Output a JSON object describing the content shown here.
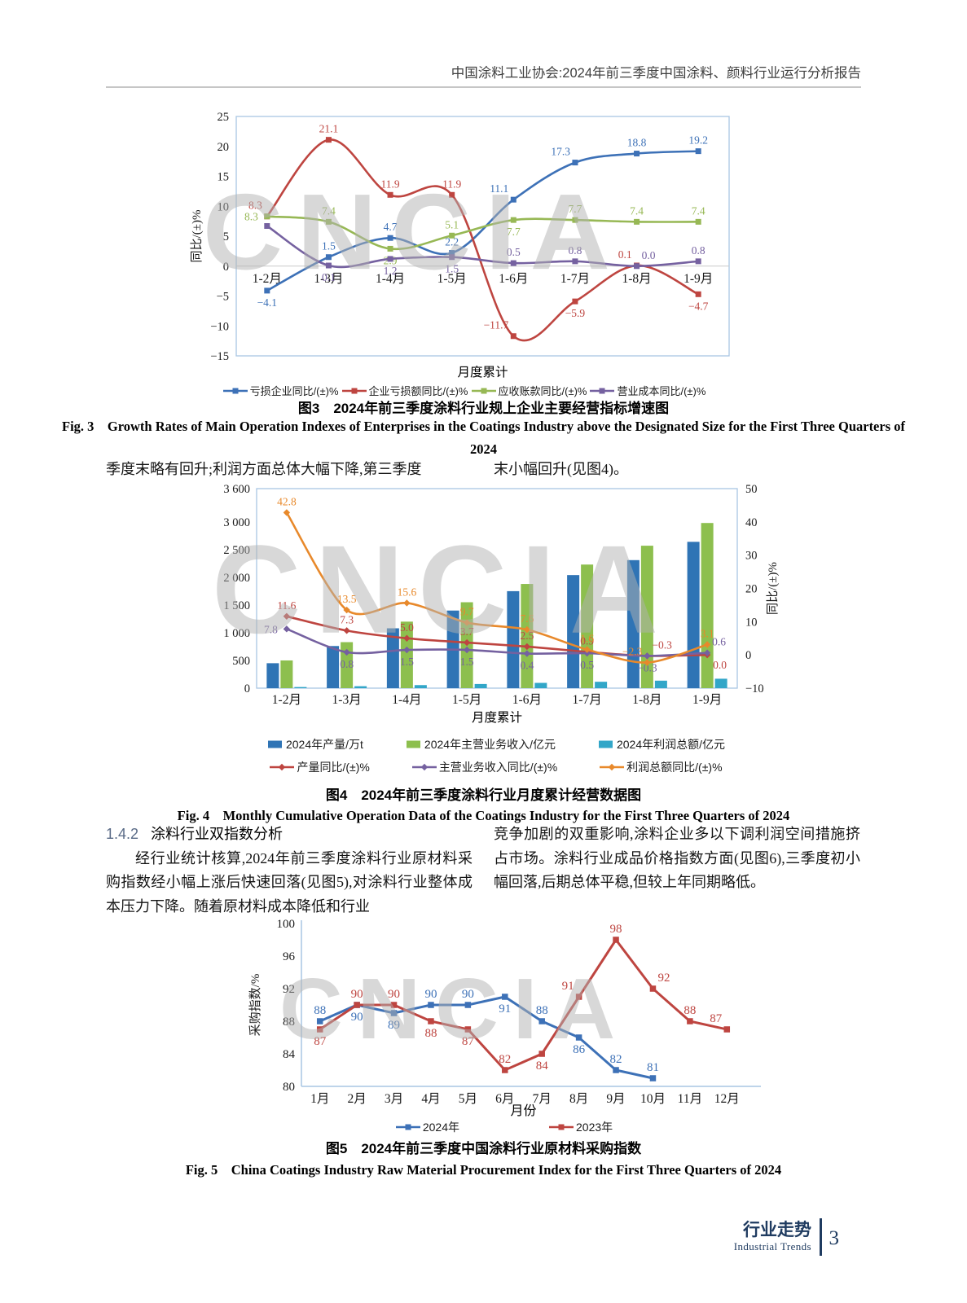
{
  "header": {
    "title": "中国涂料工业协会:2024年前三季度中国涂料、颜料行业运行分析报告"
  },
  "watermark": "CNCIA",
  "chart_style": {
    "border": "#A9C6E3",
    "grid": "#C9C9C9",
    "tick_color": "#1a1a1a"
  },
  "figures": {
    "fig3": {
      "caption_cn": "图3　2024年前三季度涂料行业规上企业主要经营指标增速图",
      "caption_en": "Fig. 3　Growth Rates of Main Operation Indexes of Enterprises in the Coatings Industry above the Designated Size for the First Three Quarters of 2024"
    },
    "fig4": {
      "caption_cn": "图4　2024年前三季度涂料行业月度累计经营数据图",
      "caption_en": "Fig. 4　Monthly Cumulative Operation Data of the Coatings Industry for the First Three Quarters of 2024"
    },
    "fig5": {
      "caption_cn": "图5　2024年前三季度中国涂料行业原材料采购指数",
      "caption_en": "Fig. 5　China Coatings Industry Raw Material Procurement Index for the First Three Quarters of 2024"
    }
  },
  "paragraphs": {
    "between_left": "季度末略有回升;利润方面总体大幅下降,第三季度",
    "between_right": "末小幅回升(见图4)。"
  },
  "section": {
    "number": "1.4.2",
    "title": "涂料行业双指数分析",
    "col_left": "经行业统计核算,2024年前三季度涂料行业原材料采购指数经小幅上涨后快速回落(见图5),对涂料行业整体成本压力下降。随着原材料成本降低和行业",
    "col_right": "竞争加剧的双重影响,涂料企业多以下调利润空间措施挤占市场。涂料行业成品价格指数方面(见图6),三季度初小幅回落,后期总体平稳,但较上年同期略低。"
  },
  "footer": {
    "label_cn": "行业走势",
    "label_en": "Industrial Trends",
    "page": "3"
  },
  "chart_data": [
    {
      "id": "fig3",
      "type": "line",
      "categories": [
        "1-2月",
        "1-3月",
        "1-4月",
        "1-5月",
        "1-6月",
        "1-7月",
        "1-8月",
        "1-9月"
      ],
      "xlabel": "月度累计",
      "ylabel": "同比/(±)%",
      "ylim": [
        -15,
        25
      ],
      "ytick_step": 5,
      "grid": "zero-line-only",
      "legend_position": "bottom",
      "series": [
        {
          "name": "亏损企业同比/(±)%",
          "color": "#3D71B7",
          "values": [
            -4.1,
            1.5,
            4.7,
            2.2,
            11.1,
            17.3,
            18.8,
            19.2
          ],
          "labels": [
            "−4.1",
            "1.5",
            "4.7",
            "2.2",
            "11.1",
            "17.3",
            "18.8",
            "19.2"
          ],
          "label_pos": [
            "b",
            "a",
            "a",
            "a",
            "al",
            "al",
            "a",
            "a"
          ]
        },
        {
          "name": "企业亏损额同比/(±)%",
          "color": "#BE4540",
          "values": [
            8.3,
            21.1,
            11.9,
            11.9,
            -11.7,
            -5.9,
            0.1,
            -4.7
          ],
          "labels": [
            "8.3",
            "21.1",
            "11.9",
            "11.9",
            "−11.7",
            "−5.9",
            "0.1",
            "−4.7"
          ],
          "label_pos": [
            "al",
            "a",
            "a",
            "a",
            "al",
            "b",
            "al",
            "b"
          ]
        },
        {
          "name": "应收账款同比/(±)%",
          "color": "#97B855",
          "values": [
            8.3,
            7.4,
            2.9,
            5.1,
            7.7,
            7.7,
            7.4,
            7.4
          ],
          "labels": [
            "8.3",
            "7.4",
            "2.9",
            "5.1",
            "7.7",
            "7.7",
            "7.4",
            "7.4"
          ],
          "label_pos": [
            "l",
            "a",
            "b",
            "a",
            "b",
            "a",
            "a",
            "a"
          ]
        },
        {
          "name": "营业成本同比/(±)%",
          "color": "#7561A0",
          "values": [
            6.7,
            0.1,
            1.2,
            1.5,
            0.5,
            0.8,
            0.0,
            0.8
          ],
          "labels": [
            "",
            "0.1",
            "1.2",
            "1.5",
            "0.5",
            "0.8",
            "0.0",
            "0.8"
          ],
          "label_pos": [
            "a",
            "b",
            "b",
            "b",
            "a",
            "a",
            "ar",
            "a"
          ]
        }
      ]
    },
    {
      "id": "fig4",
      "type": "bar-line",
      "categories": [
        "1-2月",
        "1-3月",
        "1-4月",
        "1-5月",
        "1-6月",
        "1-7月",
        "1-8月",
        "1-9月"
      ],
      "xlabel": "月度累计",
      "left_axis": {
        "tick_values": [
          0,
          500,
          1000,
          1500,
          2000,
          2500,
          3000,
          3600
        ],
        "tick_labels": [
          "0",
          "500",
          "1 000",
          "1 500",
          "2 000",
          "2 500",
          "3 000",
          "3 600"
        ],
        "max": 3600
      },
      "right_axis": {
        "label": "同比/(±)%",
        "min": -10,
        "max": 50,
        "step": 10
      },
      "legend_position": "bottom",
      "bars": [
        {
          "name": "2024年产量/万t",
          "color": "#2F74B5",
          "values": [
            450,
            760,
            1080,
            1400,
            1750,
            2040,
            2310,
            2640
          ]
        },
        {
          "name": "2024年主营业务收入/亿元",
          "color": "#8DBF4E",
          "values": [
            500,
            830,
            1200,
            1550,
            1880,
            2230,
            2570,
            2980
          ]
        },
        {
          "name": "2024年利润总额/亿元",
          "color": "#32A6C8",
          "values": [
            20,
            35,
            55,
            75,
            95,
            115,
            135,
            170
          ]
        }
      ],
      "lines": [
        {
          "name": "产量同比/(±)%",
          "color": "#BE4540",
          "values": [
            11.6,
            7.3,
            5.0,
            3.7,
            2.5,
            0.9,
            -0.3,
            0.0
          ],
          "labels": [
            "11.6",
            "7.3",
            "5.0",
            "3.7",
            "2.5",
            "0.9",
            "−0.3",
            "0.0"
          ],
          "label_pos": [
            "a",
            "a",
            "a",
            "a",
            "a",
            "a",
            "ar",
            "br"
          ]
        },
        {
          "name": "主营业务收入同比/(±)%",
          "color": "#7561A0",
          "values": [
            7.8,
            0.8,
            1.5,
            1.5,
            0.4,
            0.5,
            -0.3,
            0.6
          ],
          "labels": [
            "7.8",
            "0.8",
            "1.5",
            "1.5",
            "0.4",
            "0.5",
            "−0.3",
            "0.6"
          ],
          "label_pos": [
            "l",
            "b",
            "b",
            "b",
            "b",
            "b",
            "b",
            "ar"
          ]
        },
        {
          "name": "利润总额同比/(±)%",
          "color": "#E8892B",
          "values": [
            42.8,
            13.5,
            15.6,
            9.7,
            7.6,
            1.6,
            -2.3,
            3.1
          ],
          "labels": [
            "42.8",
            "13.5",
            "15.6",
            "9.7",
            "7.6",
            "1.6",
            "−2.3",
            "3.1"
          ],
          "label_pos": [
            "a",
            "a",
            "a",
            "a",
            "a",
            "a",
            "al",
            "a"
          ]
        }
      ]
    },
    {
      "id": "fig5",
      "type": "line",
      "categories": [
        "1月",
        "2月",
        "3月",
        "4月",
        "5月",
        "6月",
        "7月",
        "8月",
        "9月",
        "10月",
        "11月",
        "12月"
      ],
      "xlabel": "月份",
      "ylabel": "采购指数/%",
      "ylim": [
        80,
        100
      ],
      "ytick_step": 4,
      "grid": "none",
      "legend_position": "bottom",
      "series": [
        {
          "name": "2024年",
          "color": "#3D71B7",
          "values": [
            88,
            90,
            89,
            90,
            90,
            91,
            88,
            86,
            82,
            81
          ],
          "labels": [
            "88",
            "90",
            "89",
            "90",
            "90",
            "91",
            "88",
            "86",
            "82",
            "81"
          ],
          "label_pos": [
            "a",
            "b",
            "b",
            "a",
            "a",
            "b",
            "a",
            "b",
            "a",
            "a"
          ]
        },
        {
          "name": "2023年",
          "color": "#BE4540",
          "values": [
            87,
            90,
            90,
            88,
            87,
            82,
            84,
            91,
            98,
            92,
            88,
            87
          ],
          "labels": [
            "87",
            "90",
            "90",
            "88",
            "87",
            "82",
            "84",
            "91",
            "98",
            "92",
            "88",
            "87"
          ],
          "label_pos": [
            "b",
            "a",
            "a",
            "b",
            "b",
            "a",
            "b",
            "al",
            "a",
            "ar",
            "a",
            "al"
          ]
        }
      ]
    }
  ]
}
